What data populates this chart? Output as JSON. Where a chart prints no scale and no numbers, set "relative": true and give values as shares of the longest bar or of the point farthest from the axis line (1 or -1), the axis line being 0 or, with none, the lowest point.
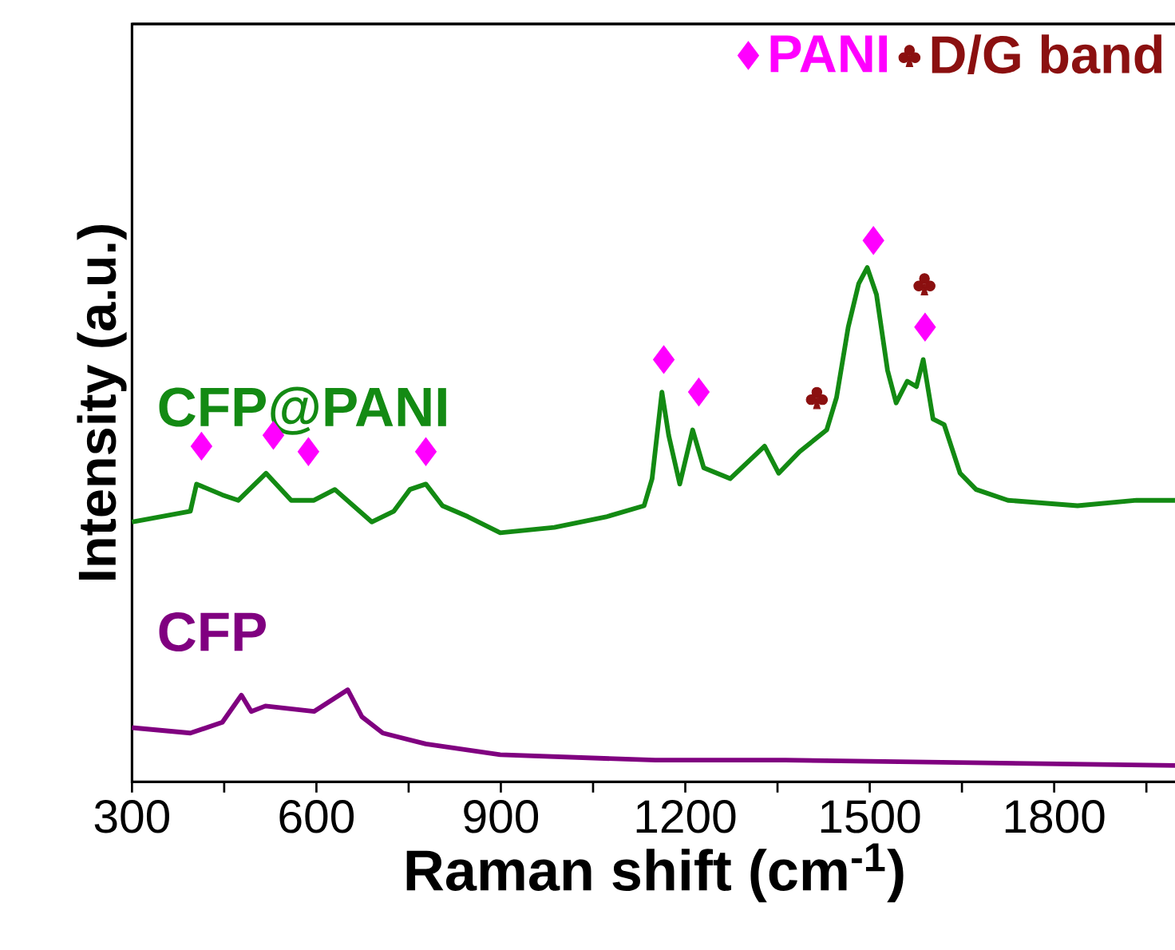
{
  "chart_data": {
    "type": "line",
    "xlabel": "Raman shift (cm$^{-1}$)",
    "ylabel": "Intensity (a.u.)",
    "relative": true,
    "xlim": [
      300,
      2000
    ],
    "xticks": [
      300,
      {
        "value": 450,
        "label": null
      },
      600,
      {
        "value": 750,
        "label": null
      },
      900,
      {
        "value": 1050,
        "label": null
      },
      1200,
      {
        "value": 1350,
        "label": null
      },
      1500,
      {
        "value": 1650,
        "label": null
      },
      1800,
      {
        "value": 1950,
        "label": null
      }
    ],
    "legend": "top right",
    "grid": false,
    "series": [
      {
        "name": "CFP@PANI",
        "color": "#138a13",
        "marker": "none",
        "x": [
          300,
          395,
          405,
          447,
          473,
          518,
          559,
          596,
          630,
          690,
          726,
          752,
          778,
          805,
          846,
          899,
          987,
          1073,
          1133,
          1146,
          1162,
          1173,
          1191,
          1212,
          1230,
          1273,
          1329,
          1352,
          1386,
          1430,
          1446,
          1465,
          1482,
          1496,
          1511,
          1529,
          1543,
          1561,
          1576,
          1587,
          1603,
          1621,
          1647,
          1673,
          1725,
          1838,
          1934,
          2000
        ],
        "values": [
          0.48,
          0.5,
          0.55,
          0.53,
          0.52,
          0.57,
          0.52,
          0.52,
          0.54,
          0.48,
          0.5,
          0.54,
          0.55,
          0.51,
          0.49,
          0.46,
          0.47,
          0.49,
          0.51,
          0.56,
          0.72,
          0.64,
          0.55,
          0.65,
          0.58,
          0.56,
          0.62,
          0.57,
          0.61,
          0.65,
          0.71,
          0.84,
          0.92,
          0.95,
          0.9,
          0.76,
          0.7,
          0.74,
          0.73,
          0.78,
          0.67,
          0.66,
          0.57,
          0.54,
          0.52,
          0.51,
          0.52,
          0.52
        ]
      },
      {
        "name": "CFP",
        "color": "#800080",
        "marker": "none",
        "x": [
          300,
          395,
          447,
          478,
          494,
          517,
          596,
          651,
          674,
          708,
          778,
          899,
          1151,
          1363,
          2000
        ],
        "values": [
          0.1,
          0.09,
          0.11,
          0.16,
          0.13,
          0.14,
          0.13,
          0.17,
          0.12,
          0.09,
          0.07,
          0.05,
          0.04,
          0.04,
          0.03
        ]
      },
      {
        "name": "PANI",
        "type": "scatter",
        "color": "#ff00ff",
        "marker": "diamond",
        "x": [
          413,
          530,
          587,
          778,
          1165,
          1222,
          1506,
          1590
        ],
        "values": [
          0.62,
          0.64,
          0.61,
          0.61,
          0.78,
          0.72,
          1.0,
          0.84
        ]
      },
      {
        "name": "D/G band",
        "type": "scatter",
        "color": "#8b1010",
        "x": [
          1414,
          1589
        ],
        "values": [
          0.71,
          0.92
        ]
      }
    ]
  }
}
